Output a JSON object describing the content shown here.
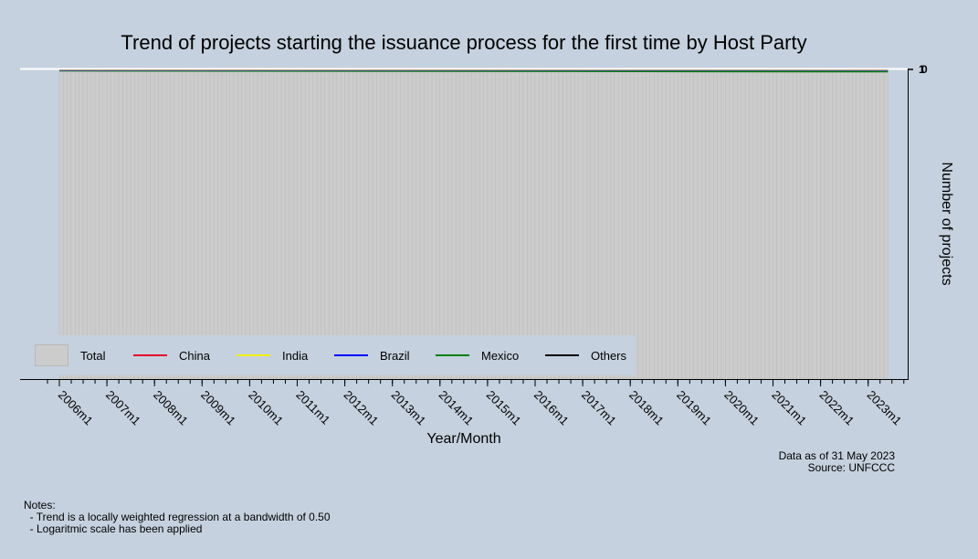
{
  "chart_data": {
    "type": "bar",
    "title": "Trend of projects starting the issuance process for the first time by Host Party",
    "xlabel": "Year/Month",
    "ylabel": "Number of projects",
    "ytick_labels": [
      "1",
      "0"
    ],
    "x_tick_labels": [
      "2006m1",
      "2007m1",
      "2008m1",
      "2009m1",
      "2010m1",
      "2011m1",
      "2012m1",
      "2013m1",
      "2014m1",
      "2015m1",
      "2016m1",
      "2017m1",
      "2018m1",
      "2019m1",
      "2020m1",
      "2021m1",
      "2022m1",
      "2023m1"
    ],
    "period_start": "2006m1",
    "period_end": "2023m5",
    "y_scale": "log",
    "grid": false,
    "legend_position": "bottom-left inside",
    "series": [
      {
        "name": "Total",
        "kind": "bar",
        "color": "#cccccc"
      },
      {
        "name": "China",
        "kind": "trend",
        "color": "#e8002a"
      },
      {
        "name": "India",
        "kind": "trend",
        "color": "#f2f000"
      },
      {
        "name": "Brazil",
        "kind": "trend",
        "color": "#0000ff"
      },
      {
        "name": "Mexico",
        "kind": "trend",
        "color": "#008000"
      },
      {
        "name": "Others",
        "kind": "trend",
        "color": "#000000"
      }
    ]
  },
  "footer": {
    "asof_line1": "Data as of 31 May 2023",
    "asof_line2": "Source: UNFCCC"
  },
  "notes": {
    "header": "Notes:",
    "line1": "  - Trend is a locally weighted regression at a bandwidth of 0.50",
    "line2": "  - Logaritmic scale has been applied"
  }
}
